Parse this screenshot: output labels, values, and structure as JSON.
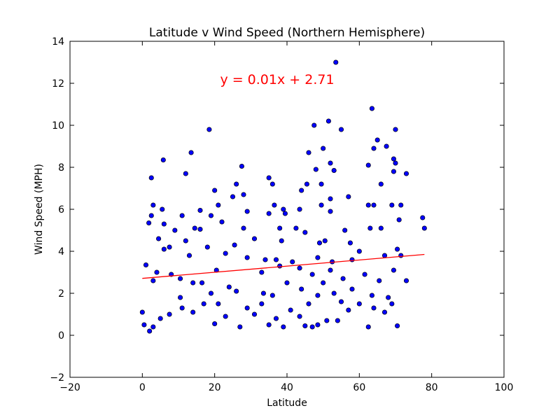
{
  "chart_data": {
    "type": "scatter",
    "title": "Latitude v Wind Speed (Northern Hemisphere)",
    "x_label": "Latitude",
    "y_label": "Wind Speed (MPH)",
    "annotation": "y = 0.01x + 2.71",
    "xlim": [
      -20,
      100
    ],
    "ylim": [
      -2,
      14
    ],
    "xticks": [
      {
        "value": -20,
        "label": "−20"
      },
      0,
      20,
      40,
      60,
      80,
      100
    ],
    "yticks": [
      {
        "value": -2,
        "label": "−2"
      },
      0,
      2,
      4,
      6,
      8,
      10,
      12,
      14
    ],
    "series": [
      {
        "color": "#0000ff",
        "x": [
          53.5,
          63.5,
          51.5,
          47.5,
          55,
          18.5,
          70,
          65,
          50,
          64,
          67.5,
          46,
          13.5,
          5.8,
          52,
          69.5,
          70,
          62.5,
          27.5,
          48,
          53,
          69.5,
          73,
          12,
          2.5,
          35,
          36,
          26,
          45.5,
          49.5,
          66,
          20,
          44,
          28,
          25,
          57,
          52,
          49.5,
          3,
          21,
          36.5,
          62.5,
          64,
          69,
          71.5,
          5.5,
          16,
          39,
          43.5,
          52,
          29,
          19,
          2.5,
          11,
          39.5,
          35,
          77.5,
          71,
          22,
          1.8,
          6,
          14.5,
          16,
          9,
          28,
          38,
          42.5,
          63,
          66,
          78,
          56,
          50.5,
          49,
          31,
          4.5,
          12,
          18,
          25.5,
          38.5,
          45,
          6,
          7.5,
          57.5,
          60,
          70.5,
          23,
          13,
          29,
          34,
          37,
          41.5,
          48.5,
          52.5,
          58,
          67,
          71.5,
          4,
          8,
          10.5,
          14,
          20.5,
          24,
          33,
          38,
          43.5,
          47,
          52,
          55.5,
          61.5,
          65.5,
          69.5,
          73,
          3,
          16.5,
          26,
          33.5,
          40,
          44,
          48.5,
          53,
          58,
          63.5,
          68,
          1,
          0,
          0.5,
          2,
          3,
          5,
          7.5,
          11,
          14,
          17,
          20,
          21,
          23,
          27,
          29,
          31,
          33,
          35,
          37,
          39,
          41,
          43.5,
          45,
          47,
          48.5,
          51,
          54,
          57,
          60,
          62.5,
          64,
          67,
          69,
          70.5,
          10.5,
          19,
          36,
          46,
          50,
          55
        ],
        "values": [
          13.0,
          10.8,
          10.2,
          10.0,
          9.8,
          9.8,
          9.8,
          9.3,
          8.9,
          8.9,
          9.0,
          8.7,
          8.7,
          8.35,
          8.2,
          8.4,
          8.2,
          8.1,
          8.05,
          7.9,
          7.85,
          7.8,
          7.7,
          7.7,
          7.5,
          7.5,
          7.2,
          7.2,
          7.2,
          7.2,
          7.2,
          6.9,
          6.9,
          6.7,
          6.6,
          6.6,
          6.5,
          6.2,
          6.2,
          6.2,
          6.2,
          6.2,
          6.2,
          6.2,
          6.2,
          6.0,
          5.95,
          6.0,
          6.0,
          5.9,
          5.9,
          5.7,
          5.7,
          5.7,
          5.8,
          5.8,
          5.6,
          5.5,
          5.4,
          5.35,
          5.3,
          5.1,
          5.05,
          5.0,
          5.1,
          5.1,
          5.1,
          5.1,
          5.1,
          5.1,
          5.0,
          4.5,
          4.4,
          4.6,
          4.6,
          4.5,
          4.2,
          4.3,
          4.5,
          4.9,
          4.1,
          4.2,
          4.4,
          4.0,
          4.1,
          3.9,
          3.8,
          3.7,
          3.6,
          3.6,
          3.5,
          3.7,
          3.5,
          3.6,
          3.8,
          3.8,
          3.0,
          2.9,
          2.7,
          2.5,
          3.1,
          2.3,
          3.0,
          3.3,
          3.2,
          2.9,
          3.1,
          2.7,
          2.9,
          2.6,
          3.1,
          2.6,
          2.6,
          2.5,
          2.1,
          2.0,
          2.5,
          2.2,
          1.9,
          2.0,
          2.2,
          1.9,
          1.8,
          3.35,
          1.1,
          0.5,
          0.2,
          0.4,
          0.8,
          1.0,
          1.3,
          1.1,
          1.5,
          0.55,
          1.5,
          0.9,
          0.4,
          1.3,
          1.0,
          1.5,
          0.5,
          0.8,
          0.4,
          1.2,
          0.9,
          0.45,
          0.4,
          0.5,
          0.7,
          0.7,
          1.2,
          1.5,
          0.4,
          1.3,
          1.1,
          1.5,
          0.45,
          1.8,
          2.0,
          1.9,
          1.5,
          2.5,
          1.6
        ]
      }
    ],
    "fit_line": {
      "color": "#ff0000",
      "x": [
        0,
        78
      ],
      "values": [
        2.71,
        3.85
      ]
    }
  }
}
